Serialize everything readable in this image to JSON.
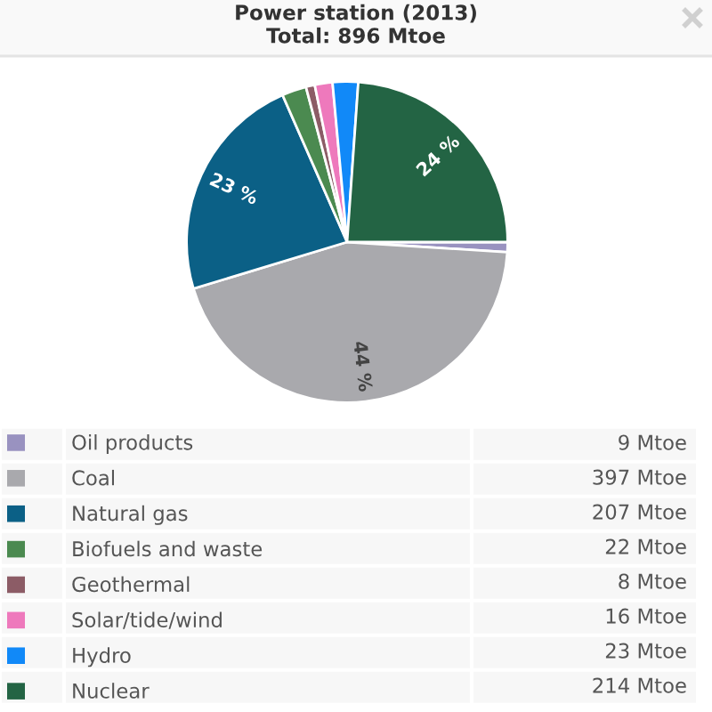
{
  "chart_data": {
    "type": "pie",
    "title": "Power station (2013)",
    "subtitle": "Total: 896 Mtoe",
    "categories": [
      "Oil products",
      "Coal",
      "Natural gas",
      "Biofuels and waste",
      "Geothermal",
      "Solar/tide/wind",
      "Hydro",
      "Nuclear"
    ],
    "values": [
      9,
      397,
      207,
      22,
      8,
      16,
      23,
      214
    ],
    "colors": [
      "#9992c0",
      "#a9a9ad",
      "#0b6086",
      "#4b8a50",
      "#8c5c66",
      "#ee79bc",
      "#1189f8",
      "#236444"
    ],
    "value_labels": [
      "9 Mtoe",
      "397 Mtoe",
      "207 Mtoe",
      "22 Mtoe",
      "8 Mtoe",
      "16 Mtoe",
      "23 Mtoe",
      "214 Mtoe"
    ],
    "annotations": [
      {
        "text": "44 %",
        "x": "Coal"
      },
      {
        "text": "23 %",
        "x": "Natural gas"
      },
      {
        "text": "24 %",
        "x": "Nuclear"
      }
    ],
    "legend": "bottom"
  }
}
